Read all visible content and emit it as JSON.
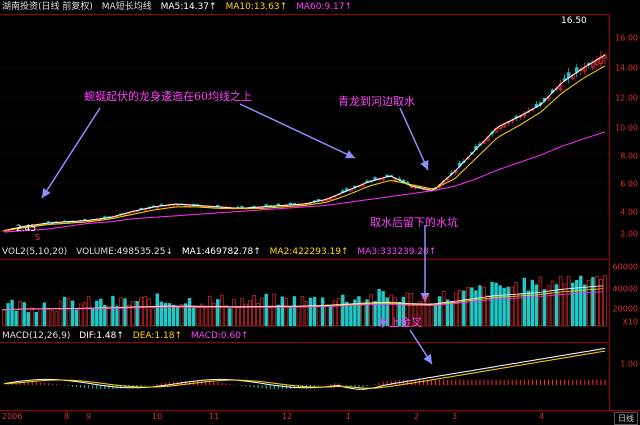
{
  "header_main": {
    "stock": "湖南投资(日线 前复权)",
    "indicator": "MA短长均线",
    "ma5": "MA5:14.37↑",
    "ma10": "MA10:13.63↑",
    "ma60": "MA60:9.17↑"
  },
  "header_vol": {
    "vol": "VOL2(5,10,20)",
    "volume": "VOLUME:498535.25↓",
    "ma1": "MA1:469782.78↑",
    "ma2": "MA2:422293.19↑",
    "ma3": "MA3:333239.28↑"
  },
  "header_macd": {
    "macd": "MACD(12,26,9)",
    "dif": "DIF:1.48↑",
    "dea": "DEA:1.18↑",
    "macd_val": "MACD:0.60↑"
  },
  "price_axis": [
    "16.00",
    "14.00",
    "12.00",
    "10.00",
    "8.00",
    "6.00",
    "4.00",
    "2.00"
  ],
  "vol_axis": [
    "60000",
    "40000",
    "20000",
    "X10"
  ],
  "macd_axis": [
    "1.00"
  ],
  "price_labels": {
    "high": "16.50",
    "low": "2.45",
    "marker": "S"
  },
  "annotations": {
    "a1": "蜿蜒起伏的龙身逶迤在60均线之上",
    "a2": "青龙到河边取水",
    "a3": "取水后留下的水坑",
    "a4": "水上金叉"
  },
  "x_axis": {
    "labels": [
      "2006",
      "8",
      "9",
      "10",
      "11",
      "12",
      "1",
      "2",
      "3",
      "4"
    ],
    "button": "日线"
  },
  "colors": {
    "up": "#ff3030",
    "down": "#20c8c8",
    "ma5": "#ffffff",
    "ma10": "#ffd700",
    "ma60": "#ff30ff"
  },
  "chart_data": {
    "type": "line",
    "series": [
      {
        "name": "MA5",
        "values": [
          2.5,
          2.8,
          3.0,
          3.1,
          3.2,
          3.4,
          3.8,
          4.1,
          4.3,
          4.2,
          4.1,
          4.0,
          4.1,
          4.2,
          4.3,
          4.6,
          5.2,
          5.8,
          6.2,
          5.5,
          5.2,
          6.5,
          8.0,
          9.5,
          10.2,
          11.0,
          12.5,
          13.5,
          14.37
        ]
      },
      {
        "name": "MA10",
        "values": [
          2.5,
          2.7,
          2.9,
          3.0,
          3.1,
          3.3,
          3.6,
          3.9,
          4.1,
          4.1,
          4.0,
          4.0,
          4.0,
          4.1,
          4.2,
          4.4,
          4.9,
          5.5,
          5.9,
          5.6,
          5.3,
          6.0,
          7.4,
          8.8,
          9.6,
          10.5,
          11.8,
          12.8,
          13.63
        ]
      },
      {
        "name": "MA60",
        "values": [
          2.4,
          2.5,
          2.6,
          2.8,
          3.0,
          3.1,
          3.3,
          3.4,
          3.5,
          3.6,
          3.7,
          3.8,
          3.9,
          4.0,
          4.1,
          4.2,
          4.4,
          4.6,
          4.8,
          5.0,
          5.2,
          5.5,
          6.0,
          6.6,
          7.1,
          7.6,
          8.2,
          8.7,
          9.17
        ]
      }
    ],
    "ylim": [
      2,
      17
    ]
  }
}
